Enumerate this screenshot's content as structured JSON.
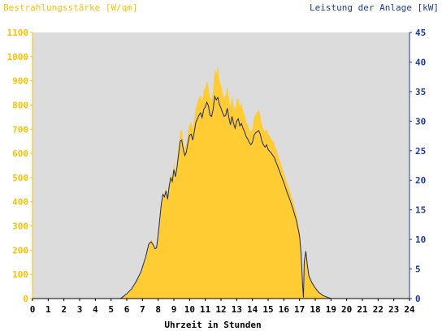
{
  "chart_data": {
    "type": "area",
    "left_axis_title": "Bestrahlungsstärke [W/qm]",
    "right_axis_title": "Leistung der Anlage [kW]",
    "xlabel": "Uhrzeit in Stunden",
    "x_range": [
      0,
      24
    ],
    "x_ticks": [
      "0",
      "1",
      "2",
      "3",
      "4",
      "5",
      "6",
      "7",
      "8",
      "9",
      "10",
      "11",
      "12",
      "13",
      "14",
      "15",
      "16",
      "17",
      "18",
      "19",
      "20",
      "21",
      "22",
      "23",
      "24"
    ],
    "y_left_range": [
      0,
      1100
    ],
    "y_left_ticks": [
      "0",
      "100",
      "200",
      "300",
      "400",
      "500",
      "600",
      "700",
      "800",
      "900",
      "1000",
      "1100"
    ],
    "y_right_range": [
      0,
      45
    ],
    "y_right_ticks": [
      "0",
      "5",
      "10",
      "15",
      "20",
      "25",
      "30",
      "35",
      "40",
      "45"
    ],
    "grid": false,
    "colors": {
      "plot_background": "#dcdcdc",
      "irradiance": "#ffcc33",
      "power": "#1a2a6e",
      "left_axis": "#ffc000",
      "right_axis": "#1f3a93"
    },
    "series": [
      {
        "name": "Bestrahlungsstärke [W/qm]",
        "axis": "left",
        "style": "area",
        "points": [
          [
            0,
            0
          ],
          [
            5.6,
            0
          ],
          [
            5.8,
            10
          ],
          [
            6.0,
            20
          ],
          [
            6.3,
            40
          ],
          [
            6.6,
            70
          ],
          [
            6.9,
            110
          ],
          [
            7.2,
            170
          ],
          [
            7.4,
            225
          ],
          [
            7.55,
            245
          ],
          [
            7.7,
            230
          ],
          [
            7.8,
            215
          ],
          [
            7.9,
            215
          ],
          [
            8.0,
            275
          ],
          [
            8.1,
            330
          ],
          [
            8.2,
            400
          ],
          [
            8.3,
            440
          ],
          [
            8.4,
            430
          ],
          [
            8.5,
            460
          ],
          [
            8.6,
            420
          ],
          [
            8.7,
            480
          ],
          [
            8.8,
            520
          ],
          [
            8.9,
            500
          ],
          [
            9.0,
            560
          ],
          [
            9.1,
            520
          ],
          [
            9.2,
            570
          ],
          [
            9.3,
            630
          ],
          [
            9.4,
            690
          ],
          [
            9.5,
            700
          ],
          [
            9.6,
            650
          ],
          [
            9.7,
            620
          ],
          [
            9.8,
            640
          ],
          [
            9.9,
            690
          ],
          [
            10.0,
            720
          ],
          [
            10.1,
            730
          ],
          [
            10.2,
            700
          ],
          [
            10.3,
            740
          ],
          [
            10.4,
            790
          ],
          [
            10.5,
            810
          ],
          [
            10.6,
            830
          ],
          [
            10.7,
            840
          ],
          [
            10.8,
            820
          ],
          [
            10.9,
            860
          ],
          [
            11.0,
            870
          ],
          [
            11.1,
            900
          ],
          [
            11.2,
            880
          ],
          [
            11.3,
            830
          ],
          [
            11.4,
            820
          ],
          [
            11.5,
            860
          ],
          [
            11.6,
            950
          ],
          [
            11.7,
            930
          ],
          [
            11.8,
            960
          ],
          [
            11.9,
            900
          ],
          [
            12.0,
            880
          ],
          [
            12.1,
            850
          ],
          [
            12.2,
            830
          ],
          [
            12.3,
            840
          ],
          [
            12.4,
            880
          ],
          [
            12.5,
            830
          ],
          [
            12.6,
            790
          ],
          [
            12.7,
            840
          ],
          [
            12.8,
            800
          ],
          [
            12.9,
            780
          ],
          [
            13.0,
            820
          ],
          [
            13.1,
            830
          ],
          [
            13.2,
            790
          ],
          [
            13.3,
            810
          ],
          [
            13.4,
            780
          ],
          [
            13.5,
            760
          ],
          [
            13.6,
            730
          ],
          [
            13.7,
            720
          ],
          [
            13.8,
            700
          ],
          [
            13.9,
            690
          ],
          [
            14.0,
            700
          ],
          [
            14.1,
            750
          ],
          [
            14.2,
            760
          ],
          [
            14.3,
            770
          ],
          [
            14.4,
            780
          ],
          [
            14.5,
            760
          ],
          [
            14.6,
            720
          ],
          [
            14.7,
            700
          ],
          [
            14.8,
            690
          ],
          [
            14.9,
            700
          ],
          [
            15.0,
            680
          ],
          [
            15.2,
            660
          ],
          [
            15.4,
            640
          ],
          [
            15.6,
            600
          ],
          [
            15.8,
            560
          ],
          [
            16.0,
            520
          ],
          [
            16.2,
            480
          ],
          [
            16.4,
            440
          ],
          [
            16.6,
            400
          ],
          [
            16.8,
            350
          ],
          [
            17.0,
            280
          ],
          [
            17.1,
            200
          ],
          [
            17.2,
            60
          ],
          [
            17.25,
            10
          ],
          [
            17.3,
            160
          ],
          [
            17.4,
            210
          ],
          [
            17.5,
            150
          ],
          [
            17.6,
            100
          ],
          [
            17.8,
            70
          ],
          [
            18.0,
            50
          ],
          [
            18.2,
            30
          ],
          [
            18.5,
            15
          ],
          [
            18.8,
            5
          ],
          [
            19.0,
            0
          ],
          [
            24,
            0
          ]
        ]
      },
      {
        "name": "Leistung der Anlage [kW]",
        "axis": "right",
        "style": "line",
        "points": [
          [
            0,
            0
          ],
          [
            5.6,
            0
          ],
          [
            5.8,
            0.4
          ],
          [
            6.0,
            0.8
          ],
          [
            6.3,
            1.6
          ],
          [
            6.6,
            2.9
          ],
          [
            6.9,
            4.5
          ],
          [
            7.2,
            7.0
          ],
          [
            7.4,
            9.2
          ],
          [
            7.55,
            9.6
          ],
          [
            7.7,
            9.0
          ],
          [
            7.8,
            8.4
          ],
          [
            7.9,
            8.6
          ],
          [
            8.0,
            10.8
          ],
          [
            8.1,
            13.4
          ],
          [
            8.2,
            16.0
          ],
          [
            8.3,
            17.6
          ],
          [
            8.4,
            17.2
          ],
          [
            8.5,
            18.2
          ],
          [
            8.6,
            16.8
          ],
          [
            8.7,
            19.0
          ],
          [
            8.8,
            20.4
          ],
          [
            8.9,
            19.8
          ],
          [
            9.0,
            21.8
          ],
          [
            9.1,
            20.6
          ],
          [
            9.2,
            22.2
          ],
          [
            9.3,
            24.4
          ],
          [
            9.4,
            26.6
          ],
          [
            9.5,
            26.8
          ],
          [
            9.6,
            25.2
          ],
          [
            9.7,
            24.2
          ],
          [
            9.8,
            24.8
          ],
          [
            9.9,
            26.4
          ],
          [
            10.0,
            27.6
          ],
          [
            10.1,
            27.8
          ],
          [
            10.2,
            26.8
          ],
          [
            10.3,
            28.2
          ],
          [
            10.4,
            29.8
          ],
          [
            10.5,
            30.4
          ],
          [
            10.6,
            31.0
          ],
          [
            10.7,
            31.4
          ],
          [
            10.8,
            30.6
          ],
          [
            10.9,
            32.0
          ],
          [
            11.0,
            32.4
          ],
          [
            11.1,
            33.2
          ],
          [
            11.2,
            32.6
          ],
          [
            11.3,
            31.0
          ],
          [
            11.4,
            30.8
          ],
          [
            11.5,
            32.0
          ],
          [
            11.6,
            34.2
          ],
          [
            11.7,
            33.6
          ],
          [
            11.8,
            34.0
          ],
          [
            11.9,
            32.8
          ],
          [
            12.0,
            32.2
          ],
          [
            12.1,
            31.4
          ],
          [
            12.2,
            30.8
          ],
          [
            12.3,
            31.0
          ],
          [
            12.4,
            32.2
          ],
          [
            12.5,
            30.6
          ],
          [
            12.6,
            29.4
          ],
          [
            12.7,
            30.8
          ],
          [
            12.8,
            29.6
          ],
          [
            12.9,
            28.8
          ],
          [
            13.0,
            30.0
          ],
          [
            13.1,
            30.4
          ],
          [
            13.2,
            29.2
          ],
          [
            13.3,
            29.6
          ],
          [
            13.4,
            28.8
          ],
          [
            13.5,
            28.2
          ],
          [
            13.6,
            27.4
          ],
          [
            13.7,
            27.0
          ],
          [
            13.8,
            26.4
          ],
          [
            13.9,
            26.0
          ],
          [
            14.0,
            26.4
          ],
          [
            14.1,
            27.6
          ],
          [
            14.2,
            28.0
          ],
          [
            14.3,
            28.2
          ],
          [
            14.4,
            28.4
          ],
          [
            14.5,
            27.8
          ],
          [
            14.6,
            26.6
          ],
          [
            14.7,
            26.0
          ],
          [
            14.8,
            25.6
          ],
          [
            14.9,
            26.0
          ],
          [
            15.0,
            25.2
          ],
          [
            15.2,
            24.6
          ],
          [
            15.4,
            23.8
          ],
          [
            15.6,
            22.4
          ],
          [
            15.8,
            21.0
          ],
          [
            16.0,
            19.6
          ],
          [
            16.2,
            18.0
          ],
          [
            16.4,
            16.6
          ],
          [
            16.6,
            15.0
          ],
          [
            16.8,
            13.2
          ],
          [
            17.0,
            10.6
          ],
          [
            17.1,
            7.6
          ],
          [
            17.2,
            2.0
          ],
          [
            17.25,
            0.2
          ],
          [
            17.3,
            6.2
          ],
          [
            17.4,
            8.0
          ],
          [
            17.5,
            5.6
          ],
          [
            17.6,
            3.8
          ],
          [
            17.8,
            2.6
          ],
          [
            18.0,
            1.8
          ],
          [
            18.2,
            1.1
          ],
          [
            18.5,
            0.5
          ],
          [
            18.8,
            0.2
          ],
          [
            19.0,
            0
          ],
          [
            24,
            0
          ]
        ]
      }
    ]
  }
}
